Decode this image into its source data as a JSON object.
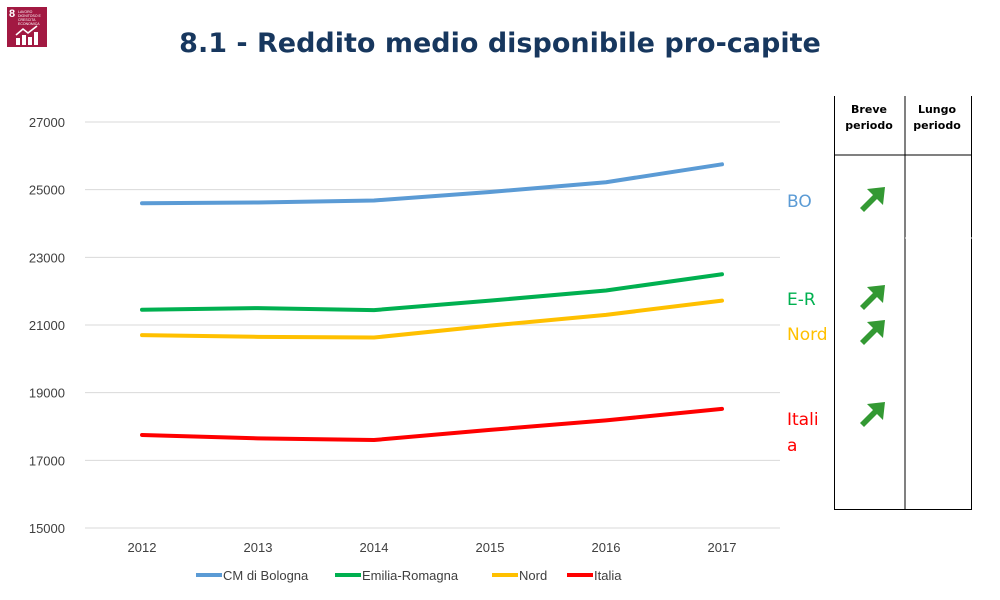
{
  "title": "8.1 - Reddito medio disponibile pro-capite",
  "badge": {
    "number": "8",
    "text": "LAVORO DIGNITOSO E CRESCITA ECONOMICA"
  },
  "colors": {
    "bo": "#5b9bd5",
    "er": "#00b050",
    "nord": "#ffc000",
    "italia": "#ff0000",
    "arrow": "#339933",
    "title": "#17375e"
  },
  "chart_data": {
    "type": "line",
    "x": [
      2012,
      2013,
      2014,
      2015,
      2016,
      2017
    ],
    "yticks": [
      15000,
      17000,
      19000,
      21000,
      23000,
      25000,
      27000
    ],
    "ylim": [
      15000,
      27000
    ],
    "series": [
      {
        "name": "CM di Bologna",
        "key": "bo",
        "values": [
          24600,
          24620,
          24680,
          24930,
          25220,
          25750
        ]
      },
      {
        "name": "Emilia-Romagna",
        "key": "er",
        "values": [
          21450,
          21500,
          21440,
          21720,
          22020,
          22500
        ]
      },
      {
        "name": "Nord",
        "key": "nord",
        "values": [
          20700,
          20650,
          20630,
          20980,
          21300,
          21720
        ]
      },
      {
        "name": "Italia",
        "key": "italia",
        "values": [
          17750,
          17650,
          17600,
          17900,
          18180,
          18520
        ]
      }
    ],
    "legend": "bottom"
  },
  "labels": {
    "bo": "BO",
    "er": "E-R",
    "nord": "Nord",
    "italia_1": "Itali",
    "italia_2": "a"
  },
  "table": {
    "col1": {
      "line1": "Breve",
      "line2": "periodo"
    },
    "col2": {
      "line1": "Lungo",
      "line2": "periodo"
    }
  },
  "trend_icons": [
    "arrow-up-right-icon",
    "arrow-up-right-icon",
    "arrow-up-right-icon",
    "arrow-up-right-icon"
  ]
}
